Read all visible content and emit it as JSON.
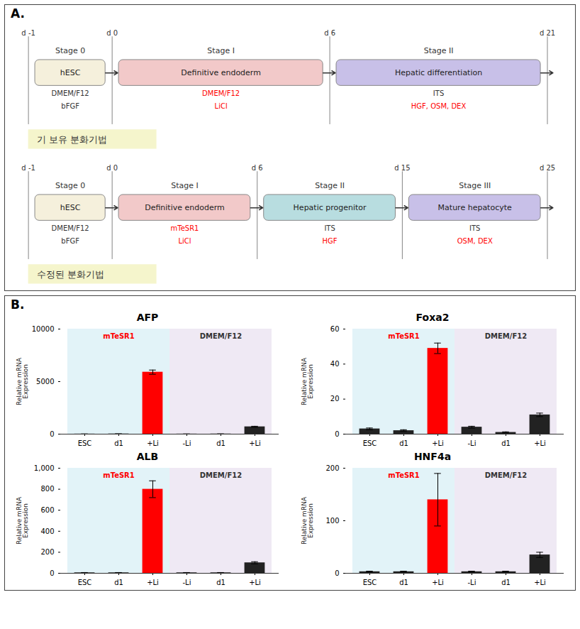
{
  "chart_data": [
    {
      "type": "diagram",
      "panel": "A.",
      "title": "기 보유 분화기법",
      "days": [
        "d -1",
        "d 0",
        "d 6",
        "d 21"
      ],
      "stages": [
        {
          "name": "Stage 0",
          "box": "hESC",
          "color": "#f5f0dc",
          "notes": [
            {
              "text": "DMEM/F12",
              "color": "#333333"
            },
            {
              "text": "bFGF",
              "color": "#333333"
            }
          ]
        },
        {
          "name": "Stage I",
          "box": "Definitive endoderm",
          "color": "#f2c9c9",
          "notes": [
            {
              "text": "DMEM/F12",
              "color": "red"
            },
            {
              "text": "LiCl",
              "color": "red"
            }
          ]
        },
        {
          "name": "Stage II",
          "box": "Hepatic differentiation",
          "color": "#c8c0e8",
          "notes": [
            {
              "text": "ITS",
              "color": "#333333"
            },
            {
              "text": "HGF, OSM, DEX",
              "color": "red"
            }
          ]
        }
      ]
    },
    {
      "type": "diagram",
      "panel": "A.",
      "title": "수정된 분화기법",
      "days": [
        "d -1",
        "d 0",
        "d 6",
        "d 15",
        "d 25"
      ],
      "stages": [
        {
          "name": "Stage 0",
          "box": "hESC",
          "color": "#f5f0dc",
          "notes": [
            {
              "text": "DMEM/F12",
              "color": "#333333"
            },
            {
              "text": "bFGF",
              "color": "#333333"
            }
          ]
        },
        {
          "name": "Stage I",
          "box": "Definitive endoderm",
          "color": "#f2c9c9",
          "notes": [
            {
              "text": "mTeSR1",
              "color": "red"
            },
            {
              "text": "LiCl",
              "color": "red"
            }
          ]
        },
        {
          "name": "Stage II",
          "box": "Hepatic progenitor",
          "color": "#b8dde0",
          "notes": [
            {
              "text": "ITS",
              "color": "#333333"
            },
            {
              "text": "HGF",
              "color": "red"
            }
          ]
        },
        {
          "name": "Stage III",
          "box": "Mature hepatocyte",
          "color": "#c8c0e8",
          "notes": [
            {
              "text": "ITS",
              "color": "#333333"
            },
            {
              "text": "OSM, DEX",
              "color": "red"
            }
          ]
        }
      ]
    },
    {
      "type": "bar",
      "panel": "B.",
      "title": "AFP",
      "categories": [
        "ESC",
        "d1",
        "+Li",
        "-Li",
        "d1",
        "+Li"
      ],
      "values": [
        10,
        20,
        5900,
        10,
        15,
        700
      ],
      "errors": [
        5,
        5,
        200,
        5,
        5,
        50
      ],
      "colors": [
        "#222222",
        "#222222",
        "#ff0000",
        "#222222",
        "#222222",
        "#222222"
      ],
      "ylabel": "Relative mRNA\nExpression",
      "ylim": [
        0,
        10000
      ],
      "yticks": [
        0,
        5000,
        10000
      ],
      "bands": [
        {
          "label": "mTeSR1",
          "color": "#d6eef5",
          "label_color": "red",
          "start": 0,
          "end": 2
        },
        {
          "label": "DMEM/F12",
          "color": "#e8e0f0",
          "label_color": "#333333",
          "start": 3,
          "end": 5
        }
      ]
    },
    {
      "type": "bar",
      "panel": "B.",
      "title": "Foxa2",
      "categories": [
        "ESC",
        "d1",
        "+Li",
        "-Li",
        "d1",
        "+Li"
      ],
      "values": [
        3,
        2,
        49,
        4,
        1,
        11
      ],
      "errors": [
        0.5,
        0.5,
        3,
        0.5,
        0.3,
        1
      ],
      "colors": [
        "#222222",
        "#222222",
        "#ff0000",
        "#222222",
        "#222222",
        "#222222"
      ],
      "ylabel": "Relative mRNA\nExpression",
      "ylim": [
        0,
        60
      ],
      "yticks": [
        0,
        20,
        40,
        60
      ],
      "bands": [
        {
          "label": "mTeSR1",
          "color": "#d6eef5",
          "label_color": "red",
          "start": 0,
          "end": 2
        },
        {
          "label": "DMEM/F12",
          "color": "#e8e0f0",
          "label_color": "#333333",
          "start": 3,
          "end": 5
        }
      ]
    },
    {
      "type": "bar",
      "panel": "B.",
      "title": "ALB",
      "categories": [
        "ESC",
        "d1",
        "+Li",
        "-Li",
        "d1",
        "+Li"
      ],
      "values": [
        5,
        5,
        800,
        5,
        5,
        100
      ],
      "errors": [
        2,
        2,
        80,
        2,
        2,
        10
      ],
      "colors": [
        "#222222",
        "#222222",
        "#ff0000",
        "#222222",
        "#222222",
        "#222222"
      ],
      "ylabel": "Relative mRNA\nExpression",
      "ylim": [
        0,
        1000
      ],
      "yticks": [
        0,
        200,
        400,
        600,
        800,
        {
          "value": 1000,
          "label": "1,000"
        }
      ],
      "bands": [
        {
          "label": "mTeSR1",
          "color": "#d6eef5",
          "label_color": "red",
          "start": 0,
          "end": 2
        },
        {
          "label": "DMEM/F12",
          "color": "#e8e0f0",
          "label_color": "#333333",
          "start": 3,
          "end": 5
        }
      ]
    },
    {
      "type": "bar",
      "panel": "B.",
      "title": "HNF4a",
      "categories": [
        "ESC",
        "d1",
        "+Li",
        "-Li",
        "d1",
        "+Li"
      ],
      "values": [
        3,
        3,
        140,
        3,
        3,
        35
      ],
      "errors": [
        1,
        1,
        50,
        1,
        1,
        5
      ],
      "colors": [
        "#222222",
        "#222222",
        "#ff0000",
        "#222222",
        "#222222",
        "#222222"
      ],
      "ylabel": "Relative mRNA\nExpression",
      "ylim": [
        0,
        200
      ],
      "yticks": [
        0,
        100,
        200
      ],
      "bands": [
        {
          "label": "mTeSR1",
          "color": "#d6eef5",
          "label_color": "red",
          "start": 0,
          "end": 2
        },
        {
          "label": "DMEM/F12",
          "color": "#e8e0f0",
          "label_color": "#333333",
          "start": 3,
          "end": 5
        }
      ]
    }
  ]
}
